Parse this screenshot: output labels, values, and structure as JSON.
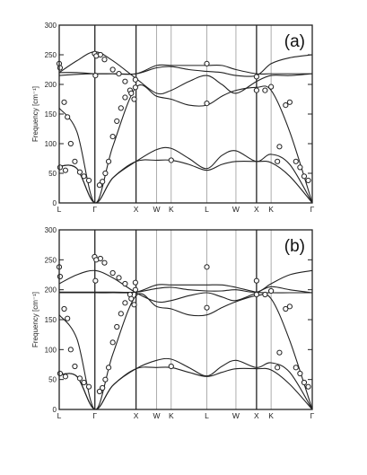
{
  "chart_data": [
    {
      "type": "line",
      "panel_label": "(a)",
      "ylabel": "Frequency [cm⁻¹]",
      "ylim": [
        0,
        300
      ],
      "yticks": [
        0,
        50,
        100,
        150,
        200,
        250,
        300
      ],
      "x_path_labels": [
        "L",
        "Γ",
        "X",
        "W",
        "K",
        "L",
        "W",
        "X",
        "K",
        "Γ"
      ],
      "x_path_positions": [
        0,
        0.866,
        1.866,
        2.366,
        2.72,
        3.586,
        4.293,
        4.793,
        5.147,
        6.147
      ],
      "x_range": [
        0,
        6.147
      ],
      "series": [
        {
          "x": [
            0,
            0.43,
            0.866,
            1.3,
            1.866,
            2.366,
            2.72,
            3.15,
            3.586,
            3.95,
            4.293,
            4.793,
            5.147,
            5.6,
            6.147
          ],
          "y": [
            62,
            58,
            0,
            42,
            70,
            72,
            72,
            65,
            55,
            65,
            70,
            70,
            68,
            45,
            0
          ]
        },
        {
          "x": [
            0,
            0.43,
            0.866,
            1.3,
            1.866,
            2.366,
            2.72,
            3.15,
            3.586,
            3.95,
            4.293,
            4.793,
            5.147,
            5.6,
            6.147
          ],
          "y": [
            62,
            58,
            0,
            42,
            70,
            90,
            92,
            75,
            58,
            80,
            88,
            70,
            82,
            65,
            0
          ]
        },
        {
          "x": [
            0,
            0.43,
            0.866,
            1.3,
            1.866,
            2.366,
            2.72,
            3.15,
            3.586,
            3.95,
            4.293,
            4.793,
            5.147,
            5.6,
            6.147
          ],
          "y": [
            160,
            120,
            0,
            95,
            195,
            180,
            175,
            165,
            165,
            180,
            190,
            195,
            190,
            120,
            0
          ]
        },
        {
          "x": [
            0,
            0.43,
            0.866,
            1.3,
            1.866,
            2.366,
            2.72,
            3.15,
            3.586,
            3.95,
            4.293,
            4.793,
            5.147,
            5.6,
            6.147
          ],
          "y": [
            220,
            240,
            255,
            240,
            210,
            185,
            190,
            205,
            215,
            200,
            185,
            205,
            215,
            215,
            218
          ]
        },
        {
          "x": [
            0,
            0.43,
            0.866,
            1.3,
            1.866,
            2.366,
            2.72,
            3.15,
            3.586,
            3.95,
            4.293,
            4.793,
            5.147,
            5.6,
            6.147
          ],
          "y": [
            220,
            220,
            218,
            218,
            218,
            228,
            230,
            225,
            222,
            220,
            215,
            215,
            235,
            245,
            250
          ]
        },
        {
          "x": [
            0,
            0.43,
            0.866,
            1.3,
            1.866,
            2.366,
            2.72,
            3.15,
            3.586,
            3.95,
            4.293,
            4.793,
            5.147,
            5.6,
            6.147
          ],
          "y": [
            215,
            217,
            218,
            218,
            218,
            232,
            232,
            232,
            232,
            232,
            225,
            218,
            218,
            218,
            218
          ]
        }
      ],
      "points": {
        "x": [
          0.0,
          0.02,
          0.12,
          0.2,
          0.28,
          0.38,
          0.5,
          0.6,
          0.72,
          0.86,
          0.88,
          0.98,
          1.05,
          1.12,
          1.2,
          1.3,
          1.4,
          1.5,
          1.6,
          1.72,
          1.75,
          1.82,
          1.0,
          0.9,
          1.1,
          1.3,
          1.45,
          1.6,
          1.85,
          1.85,
          3.586,
          3.586,
          4.793,
          4.793,
          5.0,
          5.147,
          5.3,
          5.35,
          5.5,
          5.6,
          5.75,
          5.85,
          5.95,
          6.05,
          0.02,
          0.15,
          2.72
        ],
        "y": [
          235,
          228,
          170,
          145,
          100,
          70,
          52,
          45,
          38,
          252,
          215,
          30,
          36,
          50,
          70,
          112,
          138,
          160,
          178,
          190,
          185,
          175,
          250,
          248,
          242,
          225,
          218,
          205,
          195,
          208,
          235,
          168,
          213,
          190,
          190,
          196,
          70,
          95,
          165,
          170,
          70,
          60,
          45,
          38,
          60,
          55,
          72
        ]
      }
    },
    {
      "type": "line",
      "panel_label": "(b)",
      "ylabel": "Frequency [cm⁻¹]",
      "ylim": [
        0,
        300
      ],
      "yticks": [
        0,
        50,
        100,
        150,
        200,
        250,
        300
      ],
      "x_path_labels": [
        "L",
        "Γ",
        "X",
        "W",
        "K",
        "L",
        "W",
        "X",
        "K",
        "Γ"
      ],
      "x_path_positions": [
        0,
        0.866,
        1.866,
        2.366,
        2.72,
        3.586,
        4.293,
        4.793,
        5.147,
        6.147
      ],
      "x_range": [
        0,
        6.147
      ],
      "series": [
        {
          "x": [
            0,
            0.43,
            0.866,
            1.3,
            1.866,
            2.366,
            2.72,
            3.15,
            3.586,
            3.95,
            4.293,
            4.793,
            5.147,
            5.6,
            6.147
          ],
          "y": [
            58,
            55,
            0,
            40,
            68,
            70,
            70,
            62,
            55,
            62,
            68,
            68,
            66,
            42,
            0
          ]
        },
        {
          "x": [
            0,
            0.43,
            0.866,
            1.3,
            1.866,
            2.366,
            2.72,
            3.15,
            3.586,
            3.95,
            4.293,
            4.793,
            5.147,
            5.6,
            6.147
          ],
          "y": [
            58,
            55,
            0,
            40,
            68,
            82,
            84,
            70,
            56,
            72,
            82,
            70,
            78,
            62,
            0
          ]
        },
        {
          "x": [
            0,
            0.43,
            0.866,
            1.3,
            1.866,
            2.366,
            2.72,
            3.15,
            3.586,
            3.95,
            4.293,
            4.793,
            5.147,
            5.6,
            6.147
          ],
          "y": [
            158,
            118,
            0,
            92,
            190,
            172,
            168,
            158,
            158,
            170,
            180,
            190,
            185,
            115,
            0
          ]
        },
        {
          "x": [
            0,
            0.43,
            0.866,
            1.3,
            1.866,
            2.366,
            2.72,
            3.15,
            3.586,
            3.95,
            4.293,
            4.793,
            5.147,
            5.6,
            6.147
          ],
          "y": [
            210,
            225,
            232,
            220,
            195,
            180,
            182,
            190,
            195,
            188,
            182,
            195,
            205,
            200,
            195
          ]
        },
        {
          "x": [
            0,
            0.43,
            0.866,
            1.3,
            1.866,
            2.366,
            2.72,
            3.15,
            3.586,
            3.95,
            4.293,
            4.793,
            5.147,
            5.6,
            6.147
          ],
          "y": [
            196,
            196,
            196,
            196,
            196,
            202,
            204,
            200,
            198,
            198,
            200,
            196,
            210,
            225,
            232
          ]
        },
        {
          "x": [
            0,
            0.43,
            0.866,
            1.3,
            1.866,
            2.366,
            2.72,
            3.15,
            3.586,
            3.95,
            4.293,
            4.793,
            5.147,
            5.6,
            6.147
          ],
          "y": [
            195,
            195,
            195,
            195,
            196,
            208,
            208,
            208,
            208,
            208,
            204,
            196,
            195,
            195,
            195
          ]
        }
      ],
      "points": {
        "x": [
          0.0,
          0.02,
          0.12,
          0.2,
          0.28,
          0.38,
          0.5,
          0.6,
          0.72,
          0.86,
          0.88,
          0.98,
          1.05,
          1.12,
          1.2,
          1.3,
          1.4,
          1.5,
          1.6,
          1.72,
          1.75,
          1.82,
          1.0,
          0.9,
          1.1,
          1.3,
          1.45,
          1.6,
          1.85,
          1.85,
          3.586,
          3.586,
          4.793,
          4.793,
          5.0,
          5.147,
          5.3,
          5.35,
          5.5,
          5.6,
          5.75,
          5.85,
          5.95,
          6.05,
          0.02,
          0.15,
          2.72
        ],
        "y": [
          238,
          222,
          168,
          152,
          100,
          72,
          52,
          45,
          38,
          255,
          215,
          30,
          36,
          50,
          70,
          112,
          138,
          160,
          178,
          192,
          185,
          175,
          252,
          250,
          245,
          228,
          220,
          210,
          200,
          212,
          238,
          170,
          215,
          192,
          192,
          198,
          70,
          95,
          168,
          172,
          70,
          60,
          45,
          38,
          60,
          55,
          72
        ]
      }
    }
  ]
}
